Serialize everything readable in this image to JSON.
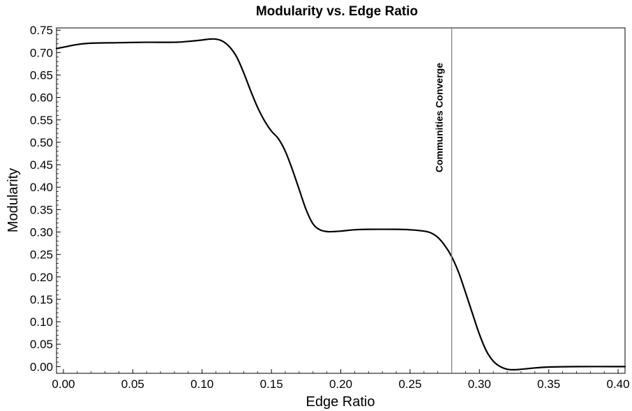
{
  "chart_data": {
    "type": "line",
    "title": "Modularity vs. Edge Ratio",
    "xlabel": "Edge Ratio",
    "ylabel": "Modularity",
    "xlim": [
      -0.005,
      0.405
    ],
    "ylim": [
      -0.015,
      0.755
    ],
    "grid": false,
    "xticks": [
      "0.00",
      "0.05",
      "0.10",
      "0.15",
      "0.20",
      "0.25",
      "0.30",
      "0.35",
      "0.40"
    ],
    "yticks": [
      "0.00",
      "0.05",
      "0.10",
      "0.15",
      "0.20",
      "0.25",
      "0.30",
      "0.35",
      "0.40",
      "0.45",
      "0.50",
      "0.55",
      "0.60",
      "0.65",
      "0.70",
      "0.75"
    ],
    "series": [
      {
        "color": "#000000",
        "x": [
          -0.005,
          0.0,
          0.01,
          0.02,
          0.04,
          0.06,
          0.08,
          0.09,
          0.1,
          0.105,
          0.11,
          0.115,
          0.12,
          0.125,
          0.13,
          0.135,
          0.14,
          0.145,
          0.15,
          0.155,
          0.16,
          0.165,
          0.17,
          0.175,
          0.18,
          0.185,
          0.19,
          0.195,
          0.2,
          0.21,
          0.22,
          0.24,
          0.25,
          0.26,
          0.265,
          0.27,
          0.275,
          0.28,
          0.285,
          0.29,
          0.295,
          0.3,
          0.305,
          0.31,
          0.315,
          0.32,
          0.325,
          0.33,
          0.34,
          0.35,
          0.37,
          0.4,
          0.405
        ],
        "y": [
          0.709,
          0.712,
          0.718,
          0.721,
          0.722,
          0.723,
          0.723,
          0.725,
          0.728,
          0.73,
          0.73,
          0.725,
          0.712,
          0.69,
          0.655,
          0.615,
          0.578,
          0.548,
          0.525,
          0.508,
          0.48,
          0.44,
          0.395,
          0.35,
          0.318,
          0.305,
          0.301,
          0.301,
          0.302,
          0.305,
          0.306,
          0.306,
          0.305,
          0.302,
          0.298,
          0.288,
          0.27,
          0.245,
          0.21,
          0.165,
          0.118,
          0.072,
          0.035,
          0.012,
          0.0,
          -0.006,
          -0.007,
          -0.006,
          -0.003,
          -0.001,
          0.0,
          0.0,
          0.0
        ]
      }
    ],
    "annotations": [
      {
        "x": 0.28,
        "text": "Communities Converge",
        "orientation": "vertical"
      }
    ]
  }
}
